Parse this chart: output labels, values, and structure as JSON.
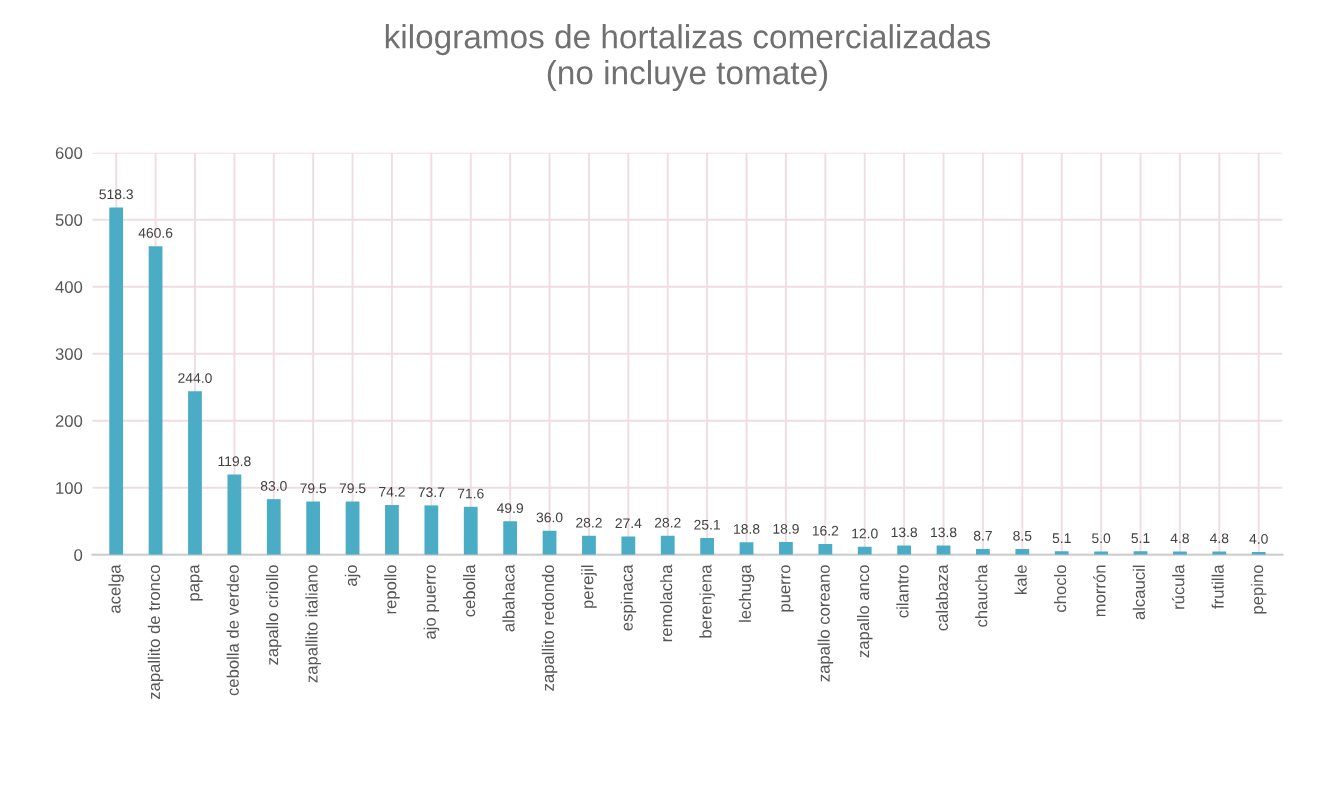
{
  "chart_data": {
    "type": "bar",
    "title": "kilogramos de hortalizas comercializadas\n(no incluye tomate)",
    "categories": [
      "acelga",
      "zapallito de tronco",
      "papa",
      "cebolla de verdeo",
      "zapallo criollo",
      "zapallito italiano",
      "ajo",
      "repollo",
      "ajo puerro",
      "cebolla",
      "albahaca",
      "zapallito redondo",
      "perejil",
      "espinaca",
      "remolacha",
      "berenjena",
      "lechuga",
      "puerro",
      "zapallo coreano",
      "zapallo anco",
      "cilantro",
      "calabaza",
      "chaucha",
      "kale",
      "choclo",
      "morrón",
      "alcaucil",
      "rúcula",
      "frutilla",
      "pepino"
    ],
    "values": [
      518.3,
      460.6,
      244.0,
      119.8,
      83.0,
      79.5,
      79.5,
      74.2,
      73.7,
      71.6,
      49.9,
      36.0,
      28.2,
      27.4,
      28.2,
      25.1,
      18.8,
      18.9,
      16.2,
      12.0,
      13.8,
      13.8,
      8.7,
      8.5,
      5.1,
      5.0,
      5.1,
      4.8,
      4.8,
      4.0
    ],
    "color": "#4bacc6",
    "ylim": [
      0,
      600
    ],
    "yticks": [
      0,
      100,
      200,
      300,
      400,
      500,
      600
    ],
    "value_labels": [
      "518.3",
      "460.6",
      "244.0",
      "119.8",
      "83.0",
      "79.5",
      "79.5",
      "74.2",
      "73.7",
      "71.6",
      "49.9",
      "36.0",
      "28.2",
      "27.4",
      "28.2",
      "25.1",
      "18.8",
      "18.9",
      "16.2",
      "12.0",
      "13.8",
      "13.8",
      "8.7",
      "8.5",
      "5.1",
      "5.0",
      "5.1",
      "4.8",
      "4.8",
      "4.0"
    ],
    "grid": true
  }
}
